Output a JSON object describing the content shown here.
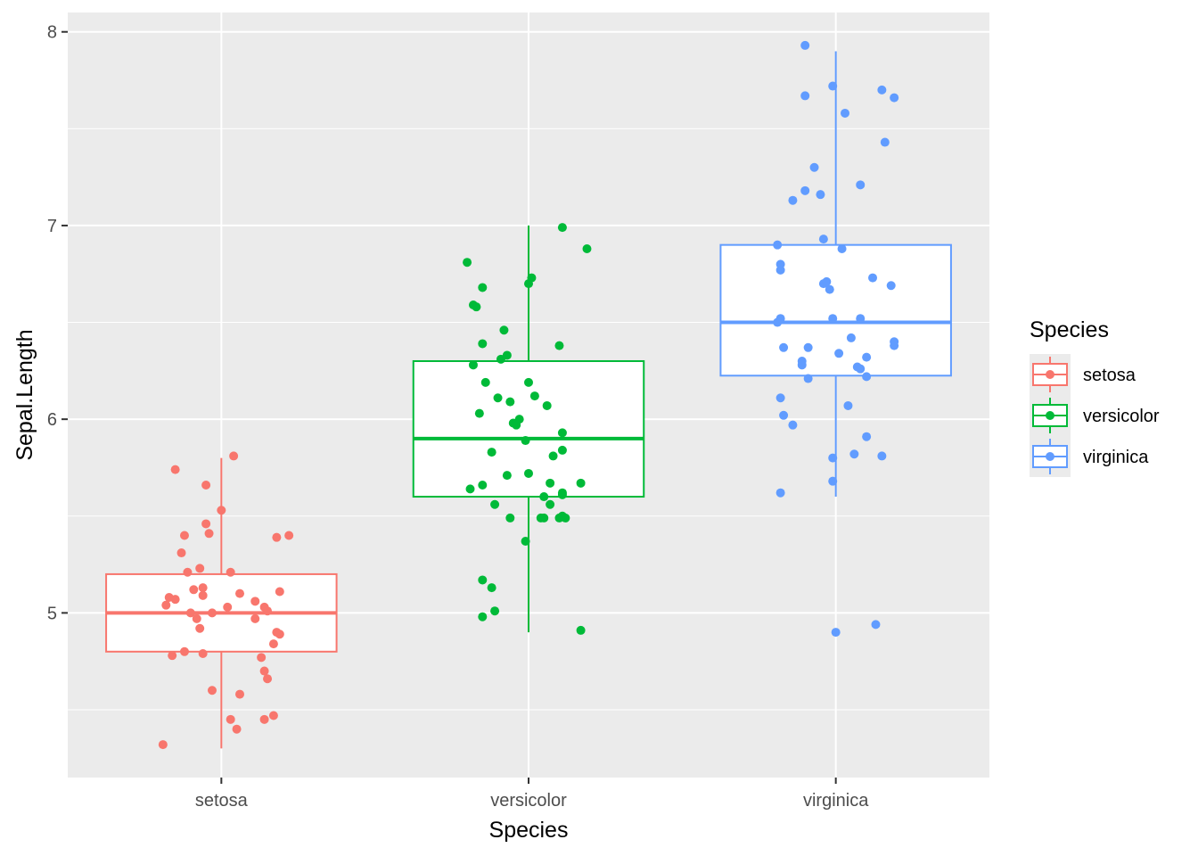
{
  "chart_data": {
    "type": "box",
    "title": "",
    "xlabel": "Species",
    "ylabel": "Sepal.Length",
    "ylim": [
      4.15,
      8.1
    ],
    "y_ticks": [
      5,
      6,
      7,
      8
    ],
    "y_tick_labels": [
      "5",
      "6",
      "7",
      "8"
    ],
    "categories": [
      "setosa",
      "versicolor",
      "virginica"
    ],
    "grid": true,
    "legend": {
      "title": "Species",
      "position": "right",
      "entries": [
        "setosa",
        "versicolor",
        "virginica"
      ]
    },
    "colors": {
      "setosa": "#F8766D",
      "versicolor": "#00BA38",
      "virginica": "#619CFF",
      "panel": "#EBEBEB",
      "grid": "#FFFFFF"
    },
    "series": [
      {
        "name": "setosa",
        "box": {
          "whisker_low": 4.3,
          "q1": 4.8,
          "median": 5.0,
          "q3": 5.2,
          "whisker_high": 5.8
        },
        "points": [
          [
            -0.19,
            4.32
          ],
          [
            0.05,
            4.4
          ],
          [
            0.03,
            4.45
          ],
          [
            0.14,
            4.45
          ],
          [
            0.17,
            4.47
          ],
          [
            0.06,
            4.58
          ],
          [
            -0.03,
            4.6
          ],
          [
            0.15,
            4.66
          ],
          [
            0.14,
            4.7
          ],
          [
            0.13,
            4.77
          ],
          [
            -0.16,
            4.78
          ],
          [
            -0.12,
            4.8
          ],
          [
            -0.06,
            4.79
          ],
          [
            0.17,
            4.84
          ],
          [
            0.19,
            4.89
          ],
          [
            0.18,
            4.9
          ],
          [
            -0.07,
            4.92
          ],
          [
            -0.08,
            4.97
          ],
          [
            0.11,
            4.97
          ],
          [
            -0.03,
            5.0
          ],
          [
            -0.1,
            5.0
          ],
          [
            0.14,
            5.03
          ],
          [
            -0.18,
            5.04
          ],
          [
            0.02,
            5.03
          ],
          [
            0.15,
            5.01
          ],
          [
            0.11,
            5.06
          ],
          [
            -0.15,
            5.07
          ],
          [
            -0.17,
            5.08
          ],
          [
            -0.06,
            5.09
          ],
          [
            0.06,
            5.1
          ],
          [
            0.19,
            5.11
          ],
          [
            -0.09,
            5.12
          ],
          [
            -0.06,
            5.13
          ],
          [
            0.03,
            5.21
          ],
          [
            -0.11,
            5.21
          ],
          [
            -0.07,
            5.23
          ],
          [
            -0.13,
            5.31
          ],
          [
            0.22,
            5.4
          ],
          [
            0.18,
            5.39
          ],
          [
            -0.12,
            5.4
          ],
          [
            -0.04,
            5.41
          ],
          [
            -0.05,
            5.46
          ],
          [
            0.0,
            5.53
          ],
          [
            -0.05,
            5.66
          ],
          [
            -0.15,
            5.74
          ],
          [
            0.04,
            5.81
          ]
        ]
      },
      {
        "name": "versicolor",
        "box": {
          "whisker_low": 4.9,
          "q1": 5.6,
          "median": 5.9,
          "q3": 6.3,
          "whisker_high": 7.0
        },
        "points": [
          [
            0.17,
            4.91
          ],
          [
            -0.15,
            4.98
          ],
          [
            -0.11,
            5.01
          ],
          [
            -0.12,
            5.13
          ],
          [
            -0.15,
            5.17
          ],
          [
            -0.01,
            5.37
          ],
          [
            0.1,
            5.49
          ],
          [
            0.11,
            5.5
          ],
          [
            0.04,
            5.49
          ],
          [
            0.12,
            5.49
          ],
          [
            -0.06,
            5.49
          ],
          [
            0.05,
            5.49
          ],
          [
            -0.11,
            5.56
          ],
          [
            0.07,
            5.56
          ],
          [
            0.11,
            5.61
          ],
          [
            0.11,
            5.62
          ],
          [
            0.05,
            5.6
          ],
          [
            -0.19,
            5.64
          ],
          [
            -0.15,
            5.66
          ],
          [
            -0.07,
            5.71
          ],
          [
            0.17,
            5.67
          ],
          [
            0.07,
            5.67
          ],
          [
            0.0,
            5.72
          ],
          [
            0.08,
            5.81
          ],
          [
            -0.12,
            5.83
          ],
          [
            0.11,
            5.84
          ],
          [
            -0.01,
            5.89
          ],
          [
            0.11,
            5.93
          ],
          [
            -0.04,
            5.97
          ],
          [
            -0.05,
            5.98
          ],
          [
            -0.03,
            6.0
          ],
          [
            -0.16,
            6.03
          ],
          [
            0.06,
            6.07
          ],
          [
            -0.1,
            6.11
          ],
          [
            0.02,
            6.12
          ],
          [
            -0.06,
            6.09
          ],
          [
            0.0,
            6.19
          ],
          [
            -0.14,
            6.19
          ],
          [
            -0.18,
            6.28
          ],
          [
            -0.09,
            6.31
          ],
          [
            -0.07,
            6.33
          ],
          [
            0.1,
            6.38
          ],
          [
            -0.15,
            6.39
          ],
          [
            -0.08,
            6.46
          ],
          [
            -0.17,
            6.58
          ],
          [
            -0.18,
            6.59
          ],
          [
            -0.15,
            6.68
          ],
          [
            0.0,
            6.7
          ],
          [
            0.01,
            6.73
          ],
          [
            -0.2,
            6.81
          ],
          [
            0.19,
            6.88
          ],
          [
            0.11,
            6.99
          ]
        ]
      },
      {
        "name": "virginica",
        "box": {
          "whisker_low": 5.6,
          "q1": 6.225,
          "median": 6.5,
          "q3": 6.9,
          "whisker_high": 7.9
        },
        "points": [
          [
            0.0,
            4.9
          ],
          [
            0.13,
            4.94
          ],
          [
            -0.18,
            5.62
          ],
          [
            -0.01,
            5.68
          ],
          [
            -0.01,
            5.8
          ],
          [
            0.06,
            5.82
          ],
          [
            0.15,
            5.81
          ],
          [
            0.1,
            5.91
          ],
          [
            -0.14,
            5.97
          ],
          [
            -0.17,
            6.02
          ],
          [
            0.04,
            6.07
          ],
          [
            -0.18,
            6.11
          ],
          [
            0.1,
            6.22
          ],
          [
            -0.09,
            6.21
          ],
          [
            0.07,
            6.27
          ],
          [
            0.08,
            6.26
          ],
          [
            -0.11,
            6.28
          ],
          [
            -0.11,
            6.3
          ],
          [
            0.1,
            6.32
          ],
          [
            0.01,
            6.34
          ],
          [
            0.19,
            6.38
          ],
          [
            0.19,
            6.4
          ],
          [
            -0.17,
            6.37
          ],
          [
            -0.09,
            6.37
          ],
          [
            0.05,
            6.42
          ],
          [
            -0.19,
            6.5
          ],
          [
            -0.18,
            6.52
          ],
          [
            -0.01,
            6.52
          ],
          [
            0.08,
            6.52
          ],
          [
            -0.02,
            6.67
          ],
          [
            -0.04,
            6.7
          ],
          [
            -0.03,
            6.71
          ],
          [
            0.18,
            6.69
          ],
          [
            0.12,
            6.73
          ],
          [
            -0.18,
            6.77
          ],
          [
            -0.18,
            6.8
          ],
          [
            0.02,
            6.88
          ],
          [
            -0.19,
            6.9
          ],
          [
            -0.04,
            6.93
          ],
          [
            -0.14,
            7.13
          ],
          [
            -0.1,
            7.18
          ],
          [
            -0.05,
            7.16
          ],
          [
            0.08,
            7.21
          ],
          [
            -0.07,
            7.3
          ],
          [
            0.16,
            7.43
          ],
          [
            0.03,
            7.58
          ],
          [
            -0.1,
            7.67
          ],
          [
            0.15,
            7.7
          ],
          [
            0.19,
            7.66
          ],
          [
            -0.01,
            7.72
          ],
          [
            -0.1,
            7.93
          ]
        ]
      }
    ]
  }
}
